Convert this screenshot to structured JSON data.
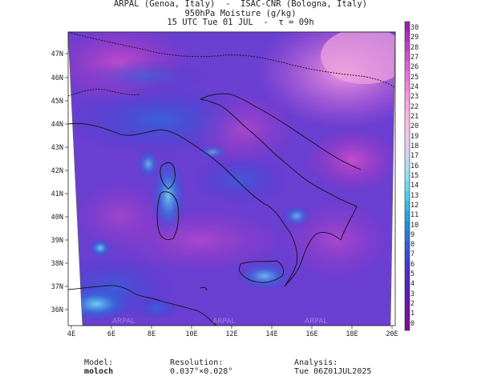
{
  "header": {
    "line1": "ARPAL (Genoa, Italy)  -  ISAC-CNR (Bologna, Italy)",
    "line2": "950hPa Moisture (g/kg)",
    "line3": "15 UTC Tue 01 JUL  -  τ = 09h"
  },
  "map": {
    "lon_labels": [
      "4E",
      "6E",
      "8E",
      "10E",
      "12E",
      "14E",
      "16E",
      "18E",
      "20E"
    ],
    "lat_labels": [
      "47N",
      "46N",
      "45N",
      "44N",
      "43N",
      "42N",
      "41N",
      "40N",
      "39N",
      "38N",
      "37N",
      "36N"
    ],
    "watermark": "ARPAL"
  },
  "colorbar": {
    "ticks": [
      "30",
      "29",
      "28",
      "27",
      "26",
      "25",
      "24",
      "23",
      "22",
      "21",
      "20",
      "19",
      "18",
      "17",
      "16",
      "15",
      "14",
      "13",
      "12",
      "11",
      "10",
      "9",
      "8",
      "7",
      "6",
      "5",
      "4",
      "3",
      "2",
      "1",
      "0"
    ],
    "colors_top_to_bottom": [
      "#9a1fb0",
      "#b12dba",
      "#c23ec4",
      "#d34fcc",
      "#e060d4",
      "#ea72da",
      "#f184de",
      "#f596e0",
      "#f8a8e2",
      "#f9b8e3",
      "#f6c2e5",
      "#eecbea",
      "#dfd2f0",
      "#c9d8f5",
      "#aedcf6",
      "#90dcf3",
      "#6fd7ee",
      "#4ecbe8",
      "#36b8e4",
      "#2aa2e2",
      "#2a8ae0",
      "#2e73de",
      "#335ddb",
      "#3a49d6",
      "#4238cf",
      "#4a2bc6",
      "#5421bd",
      "#5f19b3",
      "#6a14a8",
      "#74119d",
      "#7d0f92"
    ]
  },
  "footer": {
    "model_label": "Model:",
    "model_value": "moloch",
    "resolution_label": "Resolution:",
    "resolution_value": "0.037°×0.028°",
    "analysis_label": "Analysis:",
    "analysis_value": "Tue 06Z01JUL2025"
  }
}
